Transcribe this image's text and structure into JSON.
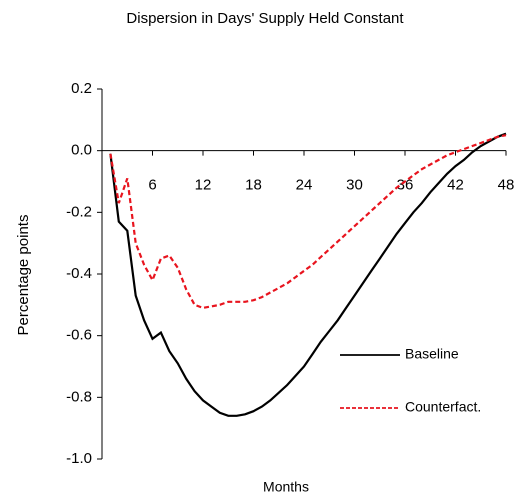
{
  "chart_data": {
    "type": "line",
    "title": "Dispersion in Days' Supply Held Constant",
    "x_label": "Months",
    "y_label": "Percentage points",
    "x": [
      1,
      2,
      3,
      4,
      5,
      6,
      7,
      8,
      9,
      10,
      11,
      12,
      13,
      14,
      15,
      16,
      17,
      18,
      19,
      20,
      21,
      22,
      23,
      24,
      25,
      26,
      27,
      28,
      29,
      30,
      31,
      32,
      33,
      34,
      35,
      36,
      37,
      38,
      39,
      40,
      41,
      42,
      43,
      44,
      45,
      46,
      47,
      48
    ],
    "series": [
      {
        "name": "Baseline",
        "color": "#000000",
        "dash": "solid",
        "values": [
          -0.01,
          -0.23,
          -0.26,
          -0.47,
          -0.55,
          -0.61,
          -0.59,
          -0.65,
          -0.69,
          -0.74,
          -0.78,
          -0.81,
          -0.83,
          -0.85,
          -0.86,
          -0.86,
          -0.855,
          -0.845,
          -0.83,
          -0.81,
          -0.785,
          -0.76,
          -0.73,
          -0.7,
          -0.66,
          -0.62,
          -0.585,
          -0.55,
          -0.51,
          -0.47,
          -0.43,
          -0.39,
          -0.35,
          -0.31,
          -0.27,
          -0.235,
          -0.2,
          -0.17,
          -0.135,
          -0.105,
          -0.075,
          -0.05,
          -0.03,
          -0.005,
          0.015,
          0.03,
          0.045,
          0.055
        ]
      },
      {
        "name": "Counterfact.",
        "color": "#e8141e",
        "dash": "dashed",
        "values": [
          -0.01,
          -0.17,
          -0.09,
          -0.3,
          -0.37,
          -0.42,
          -0.35,
          -0.34,
          -0.38,
          -0.45,
          -0.5,
          -0.51,
          -0.505,
          -0.5,
          -0.49,
          -0.49,
          -0.49,
          -0.485,
          -0.475,
          -0.46,
          -0.445,
          -0.43,
          -0.41,
          -0.39,
          -0.37,
          -0.345,
          -0.32,
          -0.295,
          -0.27,
          -0.245,
          -0.22,
          -0.195,
          -0.17,
          -0.145,
          -0.12,
          -0.1,
          -0.08,
          -0.06,
          -0.045,
          -0.03,
          -0.015,
          -0.005,
          0.005,
          0.015,
          0.025,
          0.035,
          0.045,
          0.05
        ]
      }
    ],
    "xlim": [
      0,
      48
    ],
    "xticks": [
      6,
      12,
      18,
      24,
      30,
      36,
      42,
      48
    ],
    "ylim": [
      -1.0,
      0.2
    ],
    "yticks": [
      0.2,
      {
        "value": 0,
        "label": "0.0"
      },
      -0.2,
      -0.4,
      -0.6,
      -0.8,
      {
        "value": -1.0,
        "label": "-1.0"
      }
    ],
    "grid": false,
    "legend": "lower right"
  }
}
